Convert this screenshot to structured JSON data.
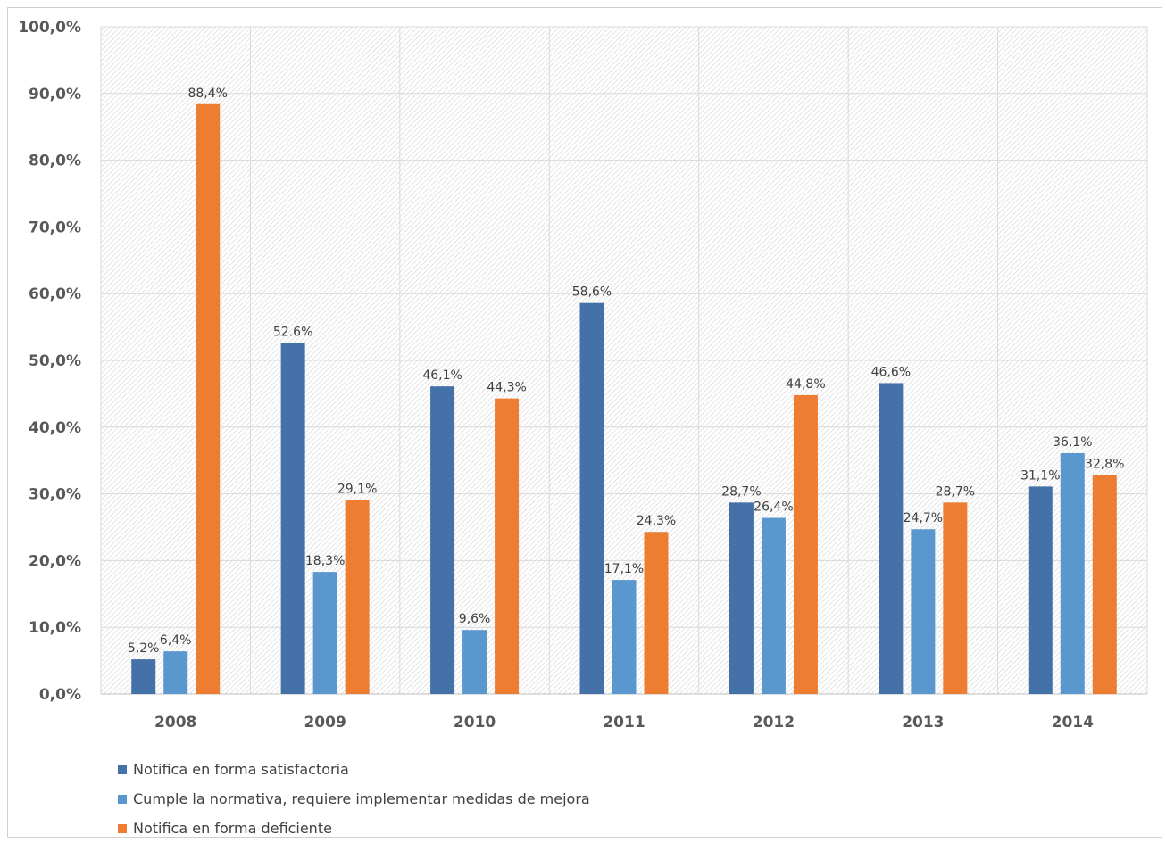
{
  "chart_data": {
    "type": "bar",
    "title": "",
    "xlabel": "",
    "ylabel": "",
    "categories": [
      "2008",
      "2009",
      "2010",
      "2011",
      "2012",
      "2013",
      "2014"
    ],
    "ylim": [
      0,
      100
    ],
    "yticks": [
      "0,0%",
      "10,0%",
      "20,0%",
      "30,0%",
      "40,0%",
      "50,0%",
      "60,0%",
      "70,0%",
      "80,0%",
      "90,0%",
      "100,0%"
    ],
    "grid": true,
    "legend_position": "bottom-left",
    "series": [
      {
        "name": "Notifica en forma  satisfactoria",
        "color": "#4472a8",
        "values": [
          5.2,
          52.6,
          46.1,
          58.6,
          28.7,
          46.6,
          31.1
        ],
        "labels": [
          "5,2%",
          "52.6%",
          "46,1%",
          "58,6%",
          "28,7%",
          "46,6%",
          "31,1%"
        ]
      },
      {
        "name": "Cumple la normativa, requiere implementar medidas de mejora",
        "color": "#5b97cf",
        "values": [
          6.4,
          18.3,
          9.6,
          17.1,
          26.4,
          24.7,
          36.1
        ],
        "labels": [
          "6,4%",
          "18,3%",
          "9,6%",
          "17,1%",
          "26,4%",
          "24,7%",
          "36,1%"
        ]
      },
      {
        "name": "Notifica en forma deficiente",
        "color": "#ed7d31",
        "values": [
          88.4,
          29.1,
          44.3,
          24.3,
          44.8,
          28.7,
          32.8
        ],
        "labels": [
          "88,4%",
          "29,1%",
          "44,3%",
          "24,3%",
          "44,8%",
          "28,7%",
          "32,8%"
        ]
      }
    ]
  }
}
